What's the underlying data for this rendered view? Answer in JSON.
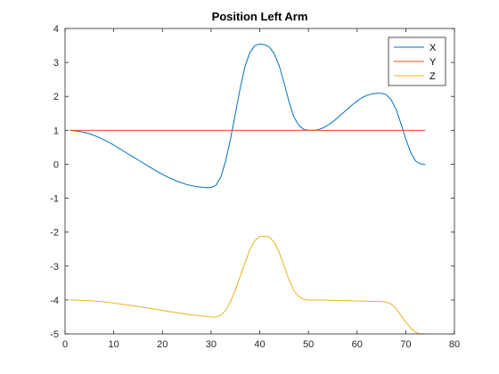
{
  "chart_data": {
    "type": "line",
    "title": "Position Left Arm",
    "xlabel": "",
    "ylabel": "",
    "xlim": [
      0,
      80
    ],
    "ylim": [
      -5,
      4
    ],
    "xticks": [
      "0",
      "10",
      "20",
      "30",
      "40",
      "50",
      "60",
      "70",
      "80"
    ],
    "yticks": [
      "-5",
      "-4",
      "-3",
      "-2",
      "-1",
      "0",
      "1",
      "2",
      "3",
      "4"
    ],
    "grid": false,
    "legend_position": "top-right",
    "series": [
      {
        "name": "X",
        "color": "#0072BD",
        "x": [
          1,
          3,
          5,
          7,
          9,
          11,
          13,
          15,
          17,
          19,
          21,
          23,
          25,
          27,
          29,
          30,
          31,
          32,
          33,
          34,
          35,
          36,
          37,
          38,
          39,
          40,
          41,
          42,
          43,
          44,
          45,
          46,
          47,
          48,
          49,
          50,
          51,
          52,
          53,
          54,
          55,
          56,
          57,
          58,
          59,
          60,
          61,
          62,
          63,
          64,
          65,
          66,
          67,
          68,
          69,
          70,
          71,
          72,
          73,
          74
        ],
        "y": [
          1.0,
          0.97,
          0.9,
          0.79,
          0.65,
          0.48,
          0.3,
          0.13,
          -0.05,
          -0.22,
          -0.37,
          -0.5,
          -0.6,
          -0.66,
          -0.69,
          -0.69,
          -0.62,
          -0.38,
          0.1,
          0.75,
          1.5,
          2.25,
          2.9,
          3.3,
          3.5,
          3.54,
          3.52,
          3.45,
          3.25,
          2.9,
          2.4,
          1.85,
          1.4,
          1.15,
          1.03,
          1.0,
          1.0,
          1.02,
          1.07,
          1.15,
          1.25,
          1.37,
          1.5,
          1.62,
          1.75,
          1.86,
          1.96,
          2.03,
          2.07,
          2.09,
          2.09,
          2.05,
          1.9,
          1.62,
          1.2,
          0.75,
          0.35,
          0.1,
          0.01,
          0.0
        ]
      },
      {
        "name": "Y",
        "color": "#D95319",
        "x": [
          1,
          74
        ],
        "y": [
          1.0,
          1.0
        ]
      },
      {
        "name": "Z",
        "color": "#EDB120",
        "x": [
          1,
          5,
          9,
          13,
          17,
          21,
          25,
          28,
          30,
          31,
          32,
          33,
          34,
          35,
          36,
          37,
          38,
          39,
          40,
          41,
          42,
          43,
          44,
          45,
          46,
          47,
          48,
          49,
          50,
          52,
          55,
          60,
          65,
          66,
          67,
          68,
          69,
          70,
          71,
          72,
          73,
          74
        ],
        "y": [
          -4.0,
          -4.02,
          -4.07,
          -4.15,
          -4.24,
          -4.33,
          -4.42,
          -4.47,
          -4.5,
          -4.5,
          -4.45,
          -4.3,
          -4.05,
          -3.7,
          -3.3,
          -2.9,
          -2.5,
          -2.25,
          -2.13,
          -2.12,
          -2.15,
          -2.3,
          -2.6,
          -3.0,
          -3.4,
          -3.72,
          -3.9,
          -3.98,
          -4.0,
          -4.0,
          -4.01,
          -4.03,
          -4.05,
          -4.06,
          -4.12,
          -4.25,
          -4.45,
          -4.65,
          -4.82,
          -4.95,
          -5.0,
          -5.0
        ]
      }
    ]
  }
}
